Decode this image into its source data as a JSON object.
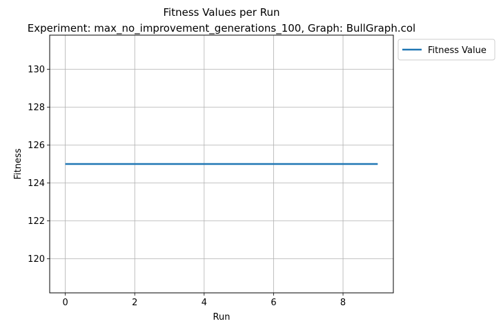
{
  "chart_data": {
    "type": "line",
    "title": "Fitness Values per Run",
    "subtitle": "Experiment: max_no_improvement_generations_100, Graph: BullGraph.col",
    "xlabel": "Run",
    "ylabel": "Fitness",
    "x": [
      0,
      1,
      2,
      3,
      4,
      5,
      6,
      7,
      8,
      9
    ],
    "series": [
      {
        "name": "Fitness Value",
        "color": "#1f77b4",
        "values": [
          125,
          125,
          125,
          125,
          125,
          125,
          125,
          125,
          125,
          125
        ]
      }
    ],
    "xlim": [
      -0.45,
      9.45
    ],
    "ylim": [
      118.2,
      131.8
    ],
    "xticks": [
      0,
      2,
      4,
      6,
      8
    ],
    "xtick_labels": [
      "0",
      "2",
      "4",
      "6",
      "8"
    ],
    "yticks": [
      120,
      122,
      124,
      126,
      128,
      130
    ],
    "ytick_labels": [
      "120",
      "122",
      "124",
      "126",
      "128",
      "130"
    ],
    "grid": true,
    "legend_position": "outside upper right"
  }
}
